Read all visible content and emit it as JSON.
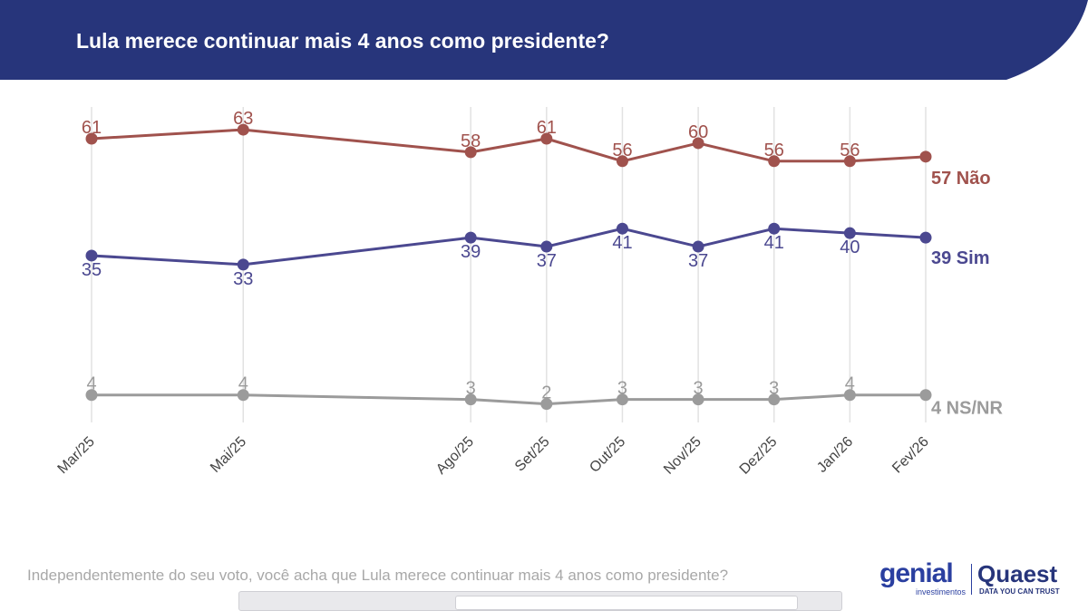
{
  "title": "Lula merece continuar mais 4 anos como presidente?",
  "footnote": "Independentemente do seu voto, você acha que Lula merece continuar mais 4 anos como presidente?",
  "logos": {
    "genial": "genial",
    "genial_sub": "investimentos",
    "quaest": "Quaest",
    "quaest_sub": "DATA YOU CAN TRUST"
  },
  "colors": {
    "header": "#27357b",
    "nao": "#a0524d",
    "sim": "#4b4890",
    "nsnr": "#9b9b9b"
  },
  "chart_data": {
    "type": "line",
    "title": "Lula merece continuar mais 4 anos como presidente?",
    "categories": [
      "Mar/25",
      "Mai/25",
      "Ago/25",
      "Set/25",
      "Out/25",
      "Nov/25",
      "Dez/25",
      "Jan/26",
      "Fev/26"
    ],
    "x_months": [
      3,
      5,
      8,
      9,
      10,
      11,
      12,
      13,
      14
    ],
    "series": [
      {
        "name": "Não",
        "end_label": "57 Não",
        "color": "#a0524d",
        "values": [
          61,
          63,
          58,
          61,
          56,
          60,
          56,
          56,
          57
        ],
        "labels_position": "above"
      },
      {
        "name": "Sim",
        "end_label": "39 Sim",
        "color": "#4b4890",
        "values": [
          35,
          33,
          39,
          37,
          41,
          37,
          41,
          40,
          39
        ],
        "labels_position": "below"
      },
      {
        "name": "NS/NR",
        "end_label": "4 NS/NR",
        "color": "#9b9b9b",
        "values": [
          4,
          4,
          3,
          2,
          3,
          3,
          3,
          4,
          4
        ],
        "labels_position": "above"
      }
    ],
    "xlabel": "",
    "ylabel": "",
    "grid": "vertical",
    "legend": "end-of-line labels on the right"
  }
}
